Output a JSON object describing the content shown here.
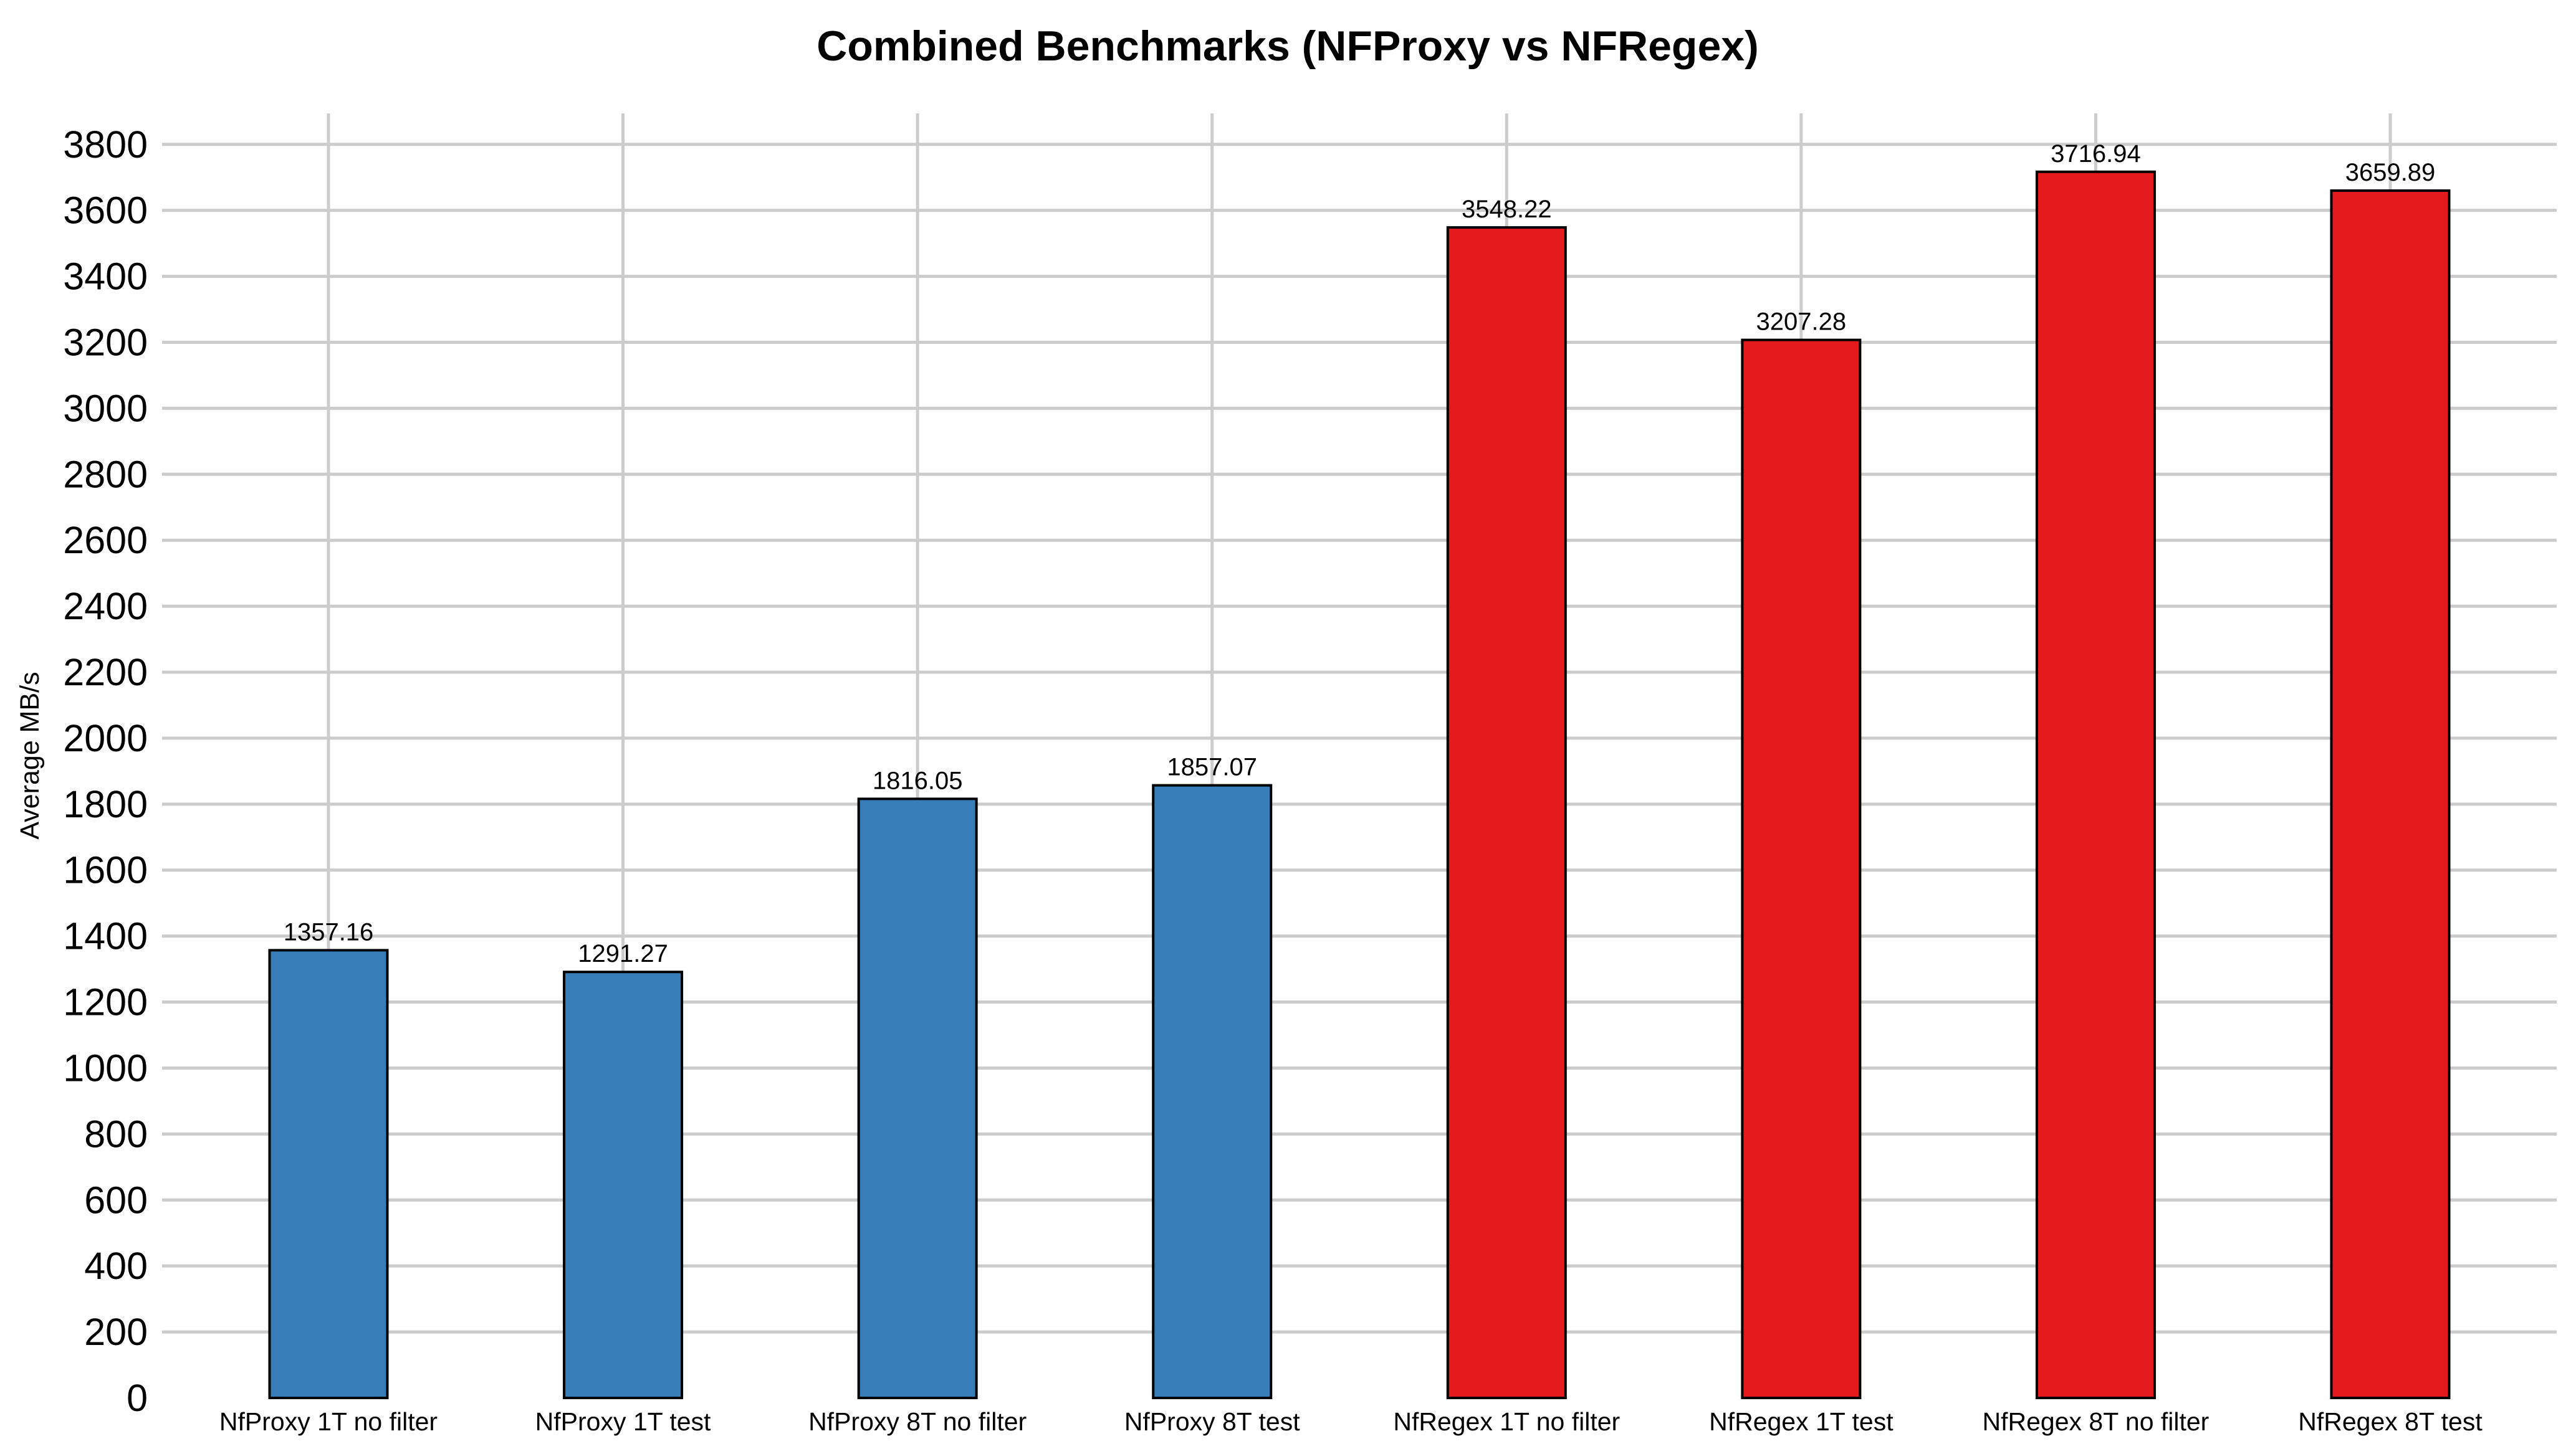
{
  "chart_data": {
    "type": "bar",
    "title": "Combined Benchmarks (NFProxy vs NFRegex)",
    "xlabel": "",
    "ylabel": "Average MB/s",
    "categories": [
      "NfProxy 1T no filter",
      "NfProxy 1T test",
      "NfProxy 8T no filter",
      "NfProxy 8T test",
      "NfRegex 1T no filter",
      "NfRegex 1T test",
      "NfRegex 8T no filter",
      "NfRegex 8T test"
    ],
    "values": [
      1357.16,
      1291.27,
      1816.05,
      1857.07,
      3548.22,
      3207.28,
      3716.94,
      3659.89
    ],
    "value_labels": [
      "1357.16",
      "1291.27",
      "1816.05",
      "1857.07",
      "3548.22",
      "3207.28",
      "3716.94",
      "3659.89"
    ],
    "bar_colors": [
      "#377eb8",
      "#377eb8",
      "#377eb8",
      "#377eb8",
      "#e41a1c",
      "#e41a1c",
      "#e41a1c",
      "#e41a1c"
    ],
    "series_groups": [
      {
        "name": "NfProxy",
        "color": "#377eb8"
      },
      {
        "name": "NfRegex",
        "color": "#e41a1c"
      }
    ],
    "y_ticks": [
      0,
      200,
      400,
      600,
      800,
      1000,
      1200,
      1400,
      1600,
      1800,
      2000,
      2200,
      2400,
      2600,
      2800,
      3000,
      3200,
      3400,
      3600,
      3800
    ],
    "ylim": [
      0,
      3894
    ],
    "grid": true,
    "legend": false,
    "colors": {
      "grid": "#cccccc",
      "text": "#000000",
      "bar_edge": "#000000",
      "background": "#ffffff"
    }
  }
}
